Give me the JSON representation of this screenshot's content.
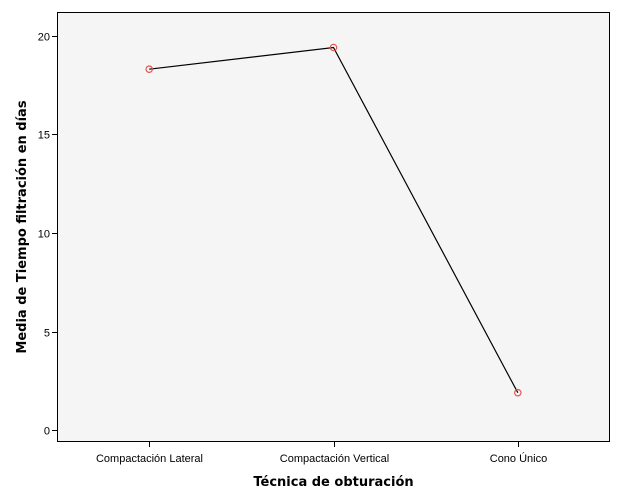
{
  "chart_data": {
    "type": "line",
    "title": "",
    "xlabel": "Técnica de obturación",
    "ylabel": "Media de Tiempo filtración en días",
    "categories": [
      "Compactación Lateral",
      "Compactación Vertical",
      "Cono Único"
    ],
    "series": [
      {
        "values": [
          18.3,
          19.4,
          1.9
        ]
      }
    ],
    "ylim": [
      -0.6,
      21.2
    ],
    "yticks": [
      0,
      5,
      10,
      15,
      20
    ],
    "ytick_labels": [
      "0",
      "5",
      "10",
      "15",
      "20"
    ],
    "grid": false,
    "legend": "none",
    "colors": {
      "plot_background": "#f5f5f5",
      "line": "#000000",
      "marker": "#e25555",
      "frame": "#000000"
    }
  }
}
